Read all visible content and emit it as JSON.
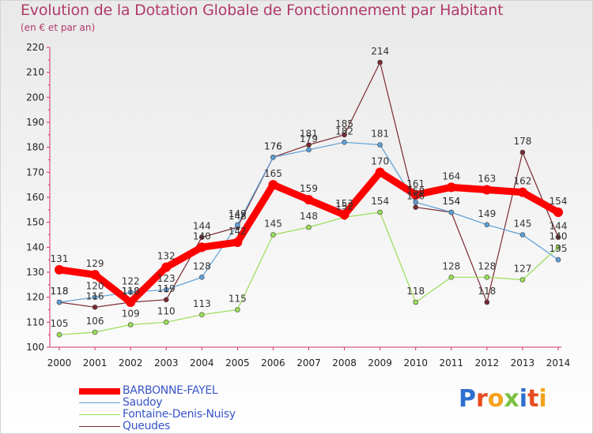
{
  "chart_data": {
    "type": "line",
    "title": "Evolution de la Dotation Globale de Fonctionnement par Habitant",
    "subtitle": "(en € et par an)",
    "categories": [
      "2000",
      "2001",
      "2002",
      "2003",
      "2004",
      "2005",
      "2006",
      "2007",
      "2008",
      "2009",
      "2010",
      "2011",
      "2012",
      "2013",
      "2014"
    ],
    "yticks": [
      "100",
      "110",
      "120",
      "130",
      "140",
      "150",
      "160",
      "170",
      "180",
      "190",
      "200",
      "210",
      "220"
    ],
    "ylim": [
      100,
      220
    ],
    "grid": false,
    "legend_position": "bottom-left",
    "series": [
      {
        "name": "BARBONNE-FAYEL",
        "color": "#ff0000",
        "values": [
          131,
          129,
          118,
          132,
          140,
          142,
          165,
          159,
          153,
          170,
          161,
          164,
          163,
          162,
          154
        ]
      },
      {
        "name": "Saudoy",
        "color": "#5d9fd6",
        "values": [
          118,
          120,
          122,
          123,
          128,
          149,
          176,
          179,
          182,
          181,
          158,
          154,
          149,
          145,
          135
        ]
      },
      {
        "name": "Fontaine-Denis-Nuisy",
        "color": "#99dd55",
        "values": [
          105,
          106,
          109,
          110,
          113,
          115,
          145,
          148,
          152,
          154,
          118,
          128,
          128,
          127,
          140
        ]
      },
      {
        "name": "Queudes",
        "color": "#7a2a32",
        "values": [
          118,
          116,
          118,
          119,
          144,
          148,
          176,
          181,
          185,
          214,
          156,
          154,
          118,
          178,
          144
        ]
      }
    ]
  },
  "logo": {
    "text": "Proxiti",
    "letters": [
      "P",
      "r",
      "o",
      "x",
      "i",
      "t",
      "i"
    ],
    "colors": [
      "#2e6fd0",
      "#e84c1f",
      "#f4a11c",
      "#7cc142",
      "#2e6fd0",
      "#e84c1f",
      "#f4a11c"
    ]
  }
}
